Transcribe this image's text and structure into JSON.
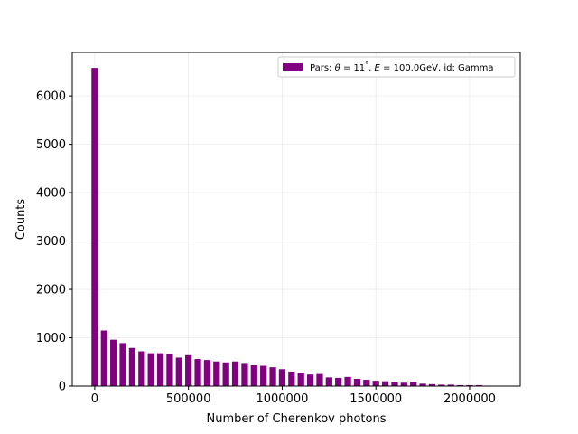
{
  "chart_data": {
    "type": "bar",
    "xlabel": "Number of Cherenkov photons",
    "ylabel": "Counts",
    "xlim": [
      -120000,
      2270000
    ],
    "ylim": [
      0,
      6900
    ],
    "xticks": [
      0,
      500000,
      1000000,
      1500000,
      2000000
    ],
    "xtick_labels": [
      "0",
      "500000",
      "1000000",
      "1500000",
      "2000000"
    ],
    "yticks": [
      0,
      1000,
      2000,
      3000,
      4000,
      5000,
      6000
    ],
    "ytick_labels": [
      "0",
      "1000",
      "2000",
      "3000",
      "4000",
      "5000",
      "6000"
    ],
    "grid": true,
    "legend_position": "top-right",
    "bar_color": "#800080",
    "bar_width": 35000,
    "series": [
      {
        "legend_parts": [
          "Pars: ",
          "θ",
          " = 11",
          "°",
          ", ",
          "E",
          " = 100.0GeV, id: Gamma"
        ],
        "x": [
          0,
          50000,
          100000,
          150000,
          200000,
          250000,
          300000,
          350000,
          400000,
          450000,
          500000,
          550000,
          600000,
          650000,
          700000,
          750000,
          800000,
          850000,
          900000,
          950000,
          1000000,
          1050000,
          1100000,
          1150000,
          1200000,
          1250000,
          1300000,
          1350000,
          1400000,
          1450000,
          1500000,
          1550000,
          1600000,
          1650000,
          1700000,
          1750000,
          1800000,
          1850000,
          1900000,
          1950000,
          2000000,
          2050000,
          2100000
        ],
        "values": [
          6580,
          1150,
          960,
          890,
          790,
          720,
          680,
          680,
          660,
          590,
          640,
          560,
          540,
          510,
          490,
          510,
          460,
          430,
          420,
          390,
          350,
          300,
          270,
          240,
          250,
          180,
          170,
          190,
          150,
          130,
          110,
          100,
          80,
          70,
          80,
          50,
          40,
          30,
          30,
          20,
          20,
          20,
          10
        ]
      }
    ]
  }
}
